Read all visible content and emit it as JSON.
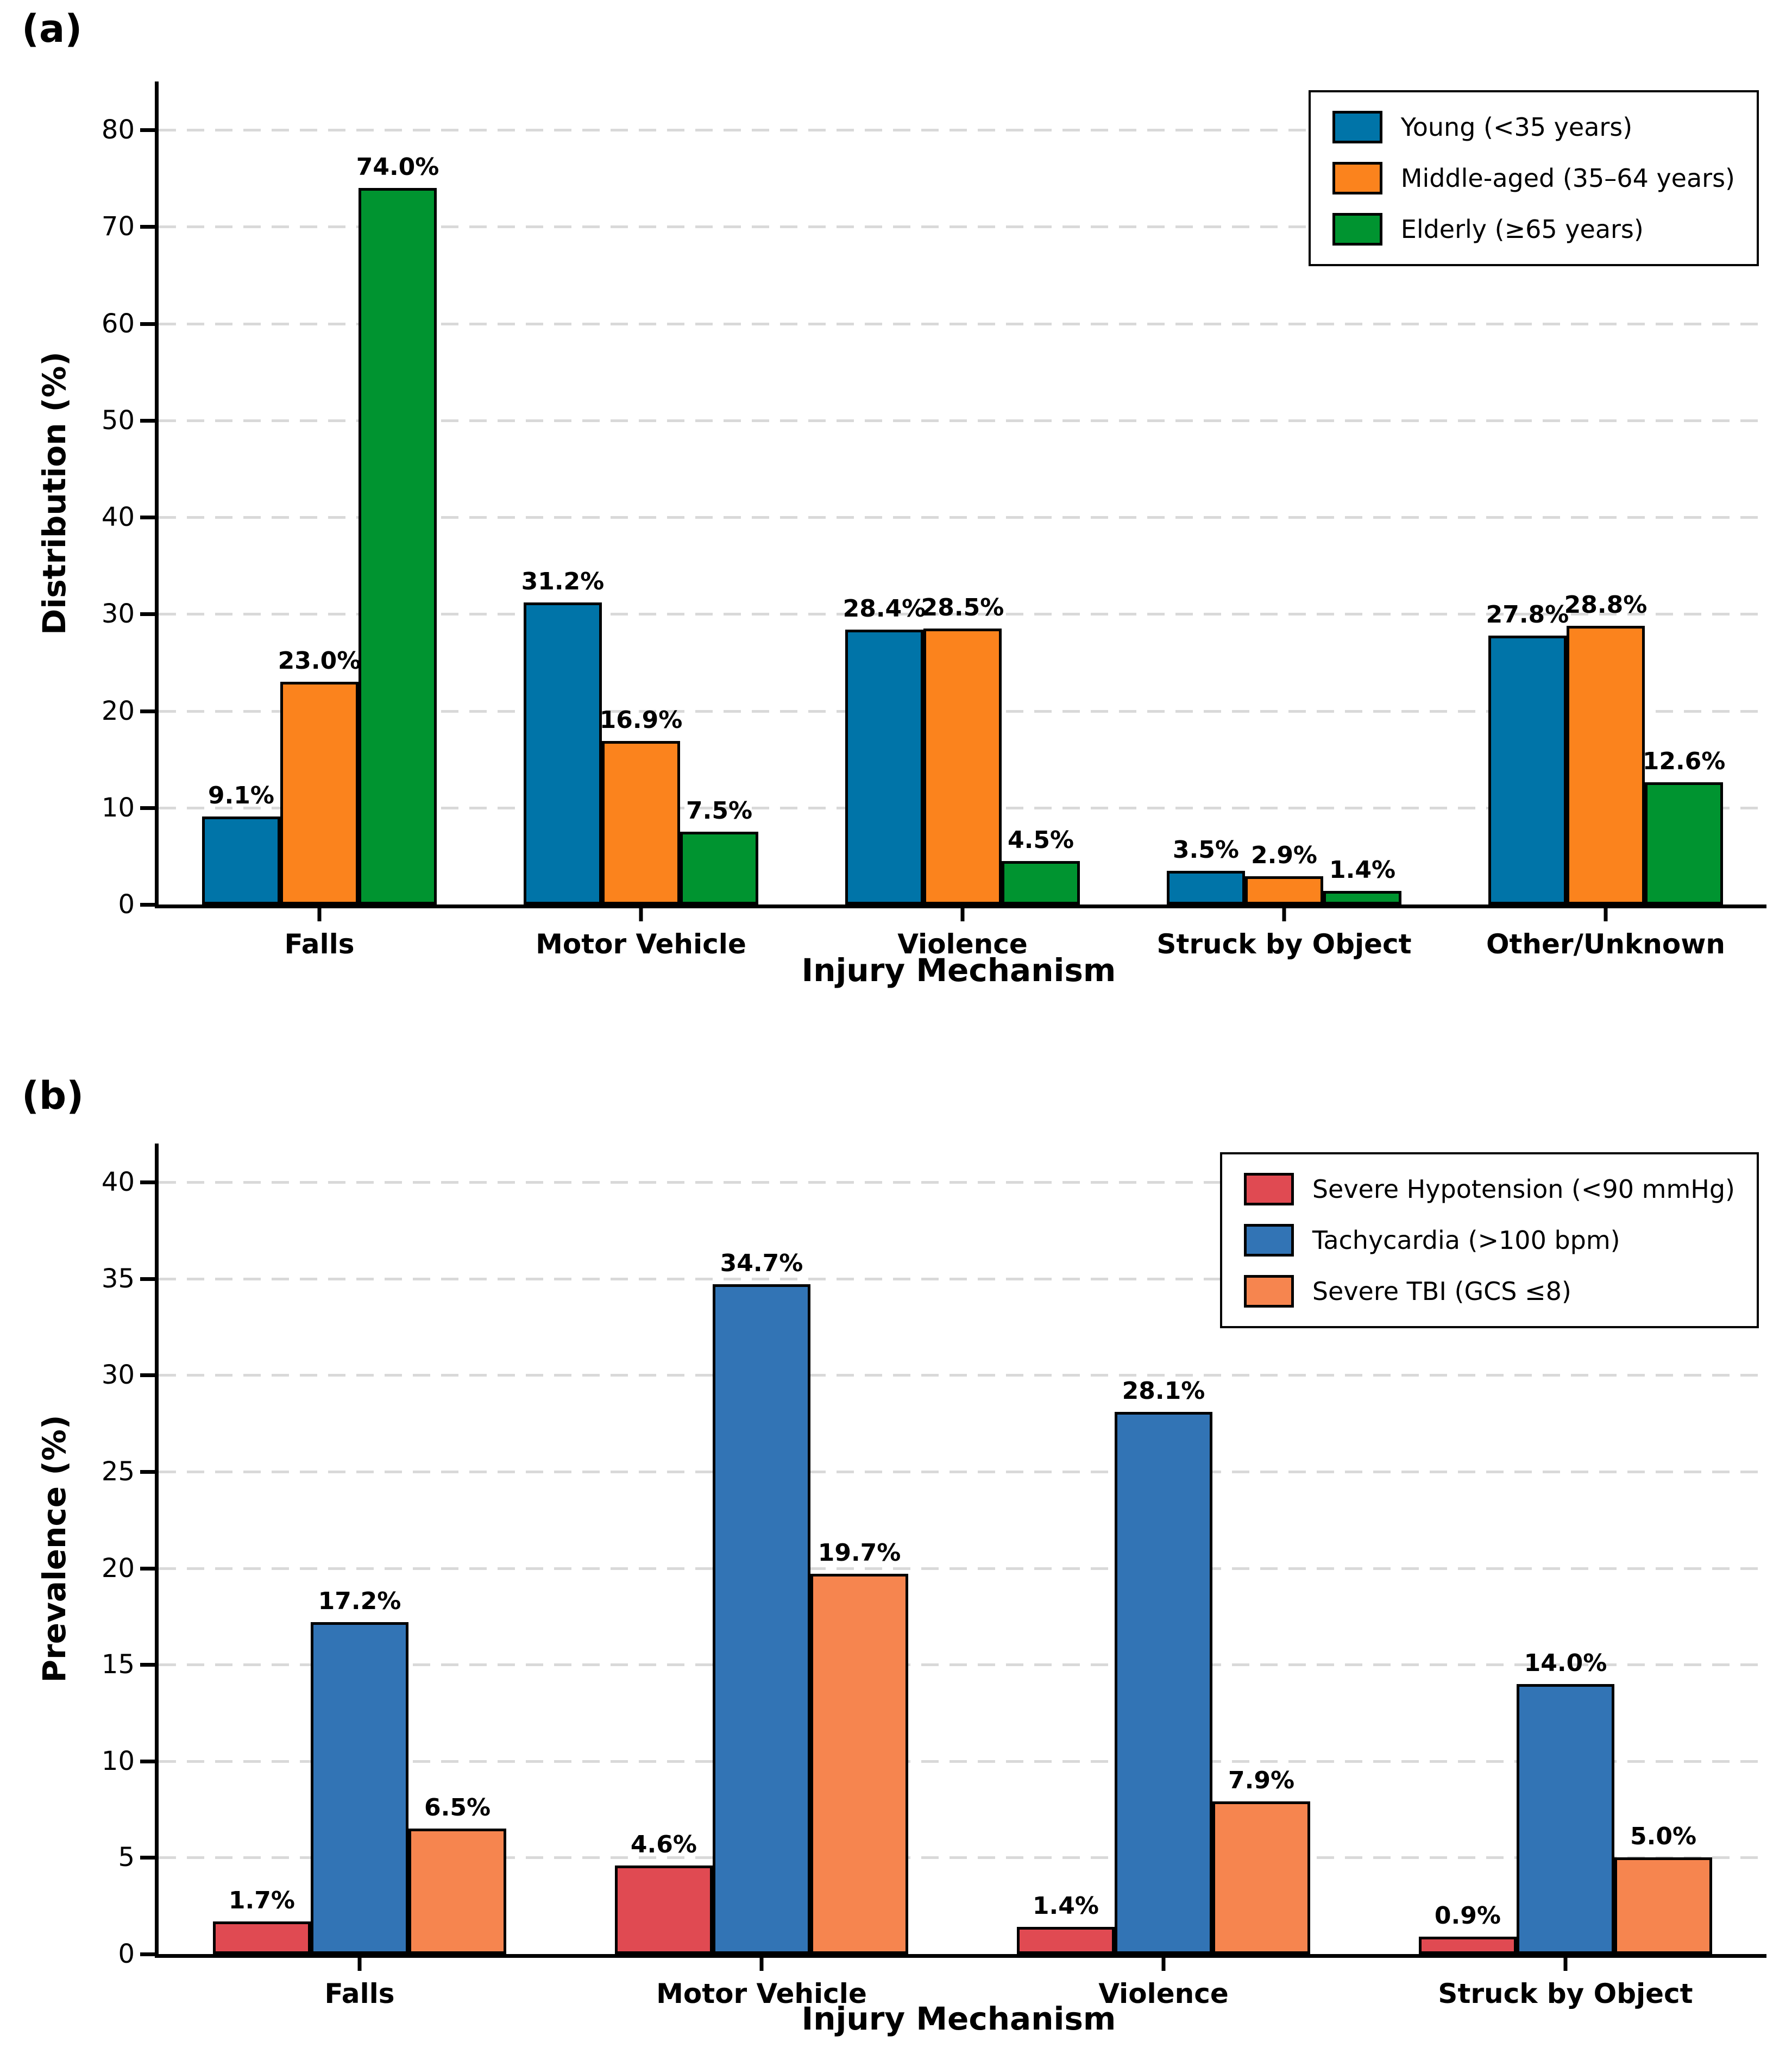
{
  "figure": {
    "background": "#ffffff",
    "text_color": "#000000",
    "bar_edge_color": "#000000",
    "grid_color": "#d9d9d9",
    "axis_color": "#000000"
  },
  "chart_data": [
    {
      "type": "bar",
      "panel_letter": "(a)",
      "title": "",
      "xlabel": "Injury Mechanism",
      "ylabel": "Distribution (%)",
      "ylim": [
        0,
        85
      ],
      "yticks": [
        0,
        10,
        20,
        30,
        40,
        50,
        60,
        70,
        80
      ],
      "grid": "horizontal-dashed",
      "legend_position": "upper right",
      "categories": [
        "Falls",
        "Motor Vehicle",
        "Violence",
        "Struck by Object",
        "Other/Unknown"
      ],
      "series": [
        {
          "name": "Young (<35 years)",
          "color": "#0074a8",
          "values": [
            9.1,
            31.2,
            28.4,
            3.5,
            27.8
          ],
          "labels": [
            "9.1%",
            "31.2%",
            "28.4%",
            "3.5%",
            "27.8%"
          ]
        },
        {
          "name": "Middle-aged (35–64 years)",
          "color": "#fb831d",
          "values": [
            23.0,
            16.9,
            28.5,
            2.9,
            28.8
          ],
          "labels": [
            "23.0%",
            "16.9%",
            "28.5%",
            "2.9%",
            "28.8%"
          ]
        },
        {
          "name": "Elderly (≥65 years)",
          "color": "#009430",
          "values": [
            74.0,
            7.5,
            4.5,
            1.4,
            12.6
          ],
          "labels": [
            "74.0%",
            "7.5%",
            "4.5%",
            "1.4%",
            "12.6%"
          ]
        }
      ]
    },
    {
      "type": "bar",
      "panel_letter": "(b)",
      "title": "",
      "xlabel": "Injury Mechanism",
      "ylabel": "Prevalence (%)",
      "ylim": [
        0,
        42
      ],
      "yticks": [
        0,
        5,
        10,
        15,
        20,
        25,
        30,
        35,
        40
      ],
      "grid": "horizontal-dashed",
      "legend_position": "upper right",
      "categories": [
        "Falls",
        "Motor Vehicle",
        "Violence",
        "Struck by Object"
      ],
      "series": [
        {
          "name": "Severe Hypotension (<90 mmHg)",
          "color": "#e04a52",
          "values": [
            1.7,
            4.6,
            1.4,
            0.9
          ],
          "labels": [
            "1.7%",
            "4.6%",
            "1.4%",
            "0.9%"
          ]
        },
        {
          "name": "Tachycardia (>100 bpm)",
          "color": "#3274b5",
          "values": [
            17.2,
            34.7,
            28.1,
            14.0
          ],
          "labels": [
            "17.2%",
            "34.7%",
            "28.1%",
            "14.0%"
          ]
        },
        {
          "name": "Severe TBI (GCS ≤8)",
          "color": "#f6854f",
          "values": [
            6.5,
            19.7,
            7.9,
            5.0
          ],
          "labels": [
            "6.5%",
            "19.7%",
            "7.9%",
            "5.0%"
          ]
        }
      ]
    }
  ]
}
